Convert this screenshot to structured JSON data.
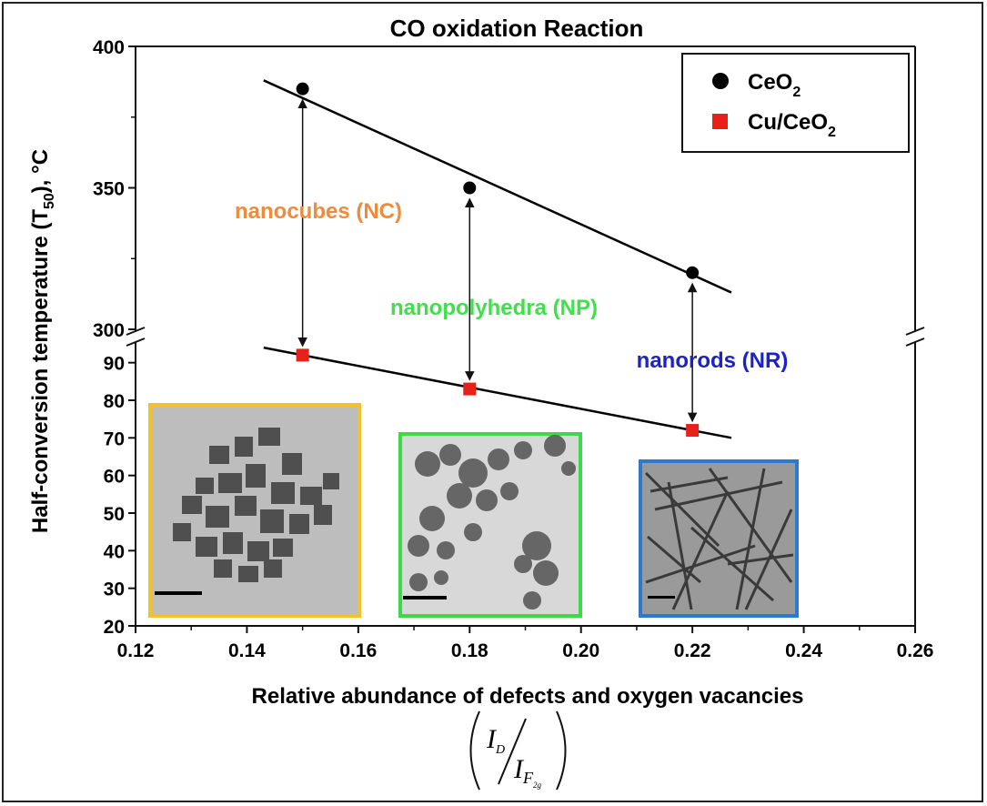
{
  "chart_data": {
    "type": "scatter",
    "title": "CO oxidation Reaction",
    "xlabel": "Relative abundance of defects and oxygen vacancies",
    "xlabel_formula": {
      "numerator": "I",
      "numerator_sub": "D",
      "denominator": "I",
      "denominator_sub": "F",
      "denominator_subsub": "2g"
    },
    "ylabel": {
      "main": "Half-conversion temperature (T",
      "sub": "50",
      "tail": "), °C"
    },
    "xlim": [
      0.12,
      0.26
    ],
    "x_ticks": [
      "0.12",
      "0.14",
      "0.16",
      "0.18",
      "0.20",
      "0.22",
      "0.24",
      "0.26"
    ],
    "y_axis_broken": true,
    "ylim_upper": [
      300,
      400
    ],
    "y_ticks_upper": [
      "300",
      "350",
      "400"
    ],
    "ylim_lower": [
      20,
      95
    ],
    "y_ticks_lower": [
      "20",
      "30",
      "40",
      "50",
      "60",
      "70",
      "80",
      "90"
    ],
    "series": [
      {
        "name": "CeO2",
        "legend_main": "CeO",
        "legend_sub": "2",
        "marker": "circle",
        "color": "#000000",
        "x": [
          0.15,
          0.18,
          0.22
        ],
        "y": [
          385,
          350,
          320
        ],
        "fit": {
          "x": [
            0.143,
            0.227
          ],
          "y": [
            388,
            313
          ]
        }
      },
      {
        "name": "Cu/CeO2",
        "legend_main": "Cu/CeO",
        "legend_sub": "2",
        "marker": "square",
        "color": "#e8201a",
        "x": [
          0.15,
          0.18,
          0.22
        ],
        "y": [
          92,
          83,
          72
        ],
        "fit": {
          "x": [
            0.143,
            0.227
          ],
          "y": [
            94,
            70
          ]
        }
      }
    ],
    "annotations": [
      {
        "text": "nanocubes (NC)",
        "color": "#f08a3c"
      },
      {
        "text": "nanopolyhedra (NP)",
        "color": "#3fe04a"
      },
      {
        "text": "nanorods (NR)",
        "color": "#1c22c8"
      }
    ],
    "insets": [
      {
        "name": "nanocubes-tem-image",
        "border": "#f2c22a"
      },
      {
        "name": "nanopolyhedra-tem-image",
        "border": "#3fd84a"
      },
      {
        "name": "nanorods-tem-image",
        "border": "#2a7bd0"
      }
    ]
  }
}
